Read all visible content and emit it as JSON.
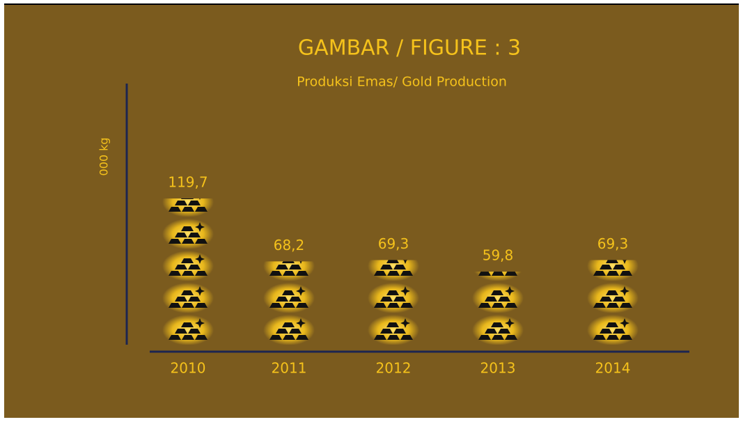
{
  "chart_data": {
    "type": "pictograph",
    "title": "GAMBAR / FIGURE : 3",
    "subtitle": "Produksi Emas/ Gold Production",
    "y_label": "000 kg",
    "categories": [
      "2010",
      "2011",
      "2012",
      "2013",
      "2014"
    ],
    "values": [
      119.7,
      68.2,
      69.3,
      59.8,
      69.3
    ],
    "value_labels": [
      "119,7",
      "68,2",
      "69,3",
      "59,8",
      "69,3"
    ],
    "color": "#f5c21b"
  }
}
